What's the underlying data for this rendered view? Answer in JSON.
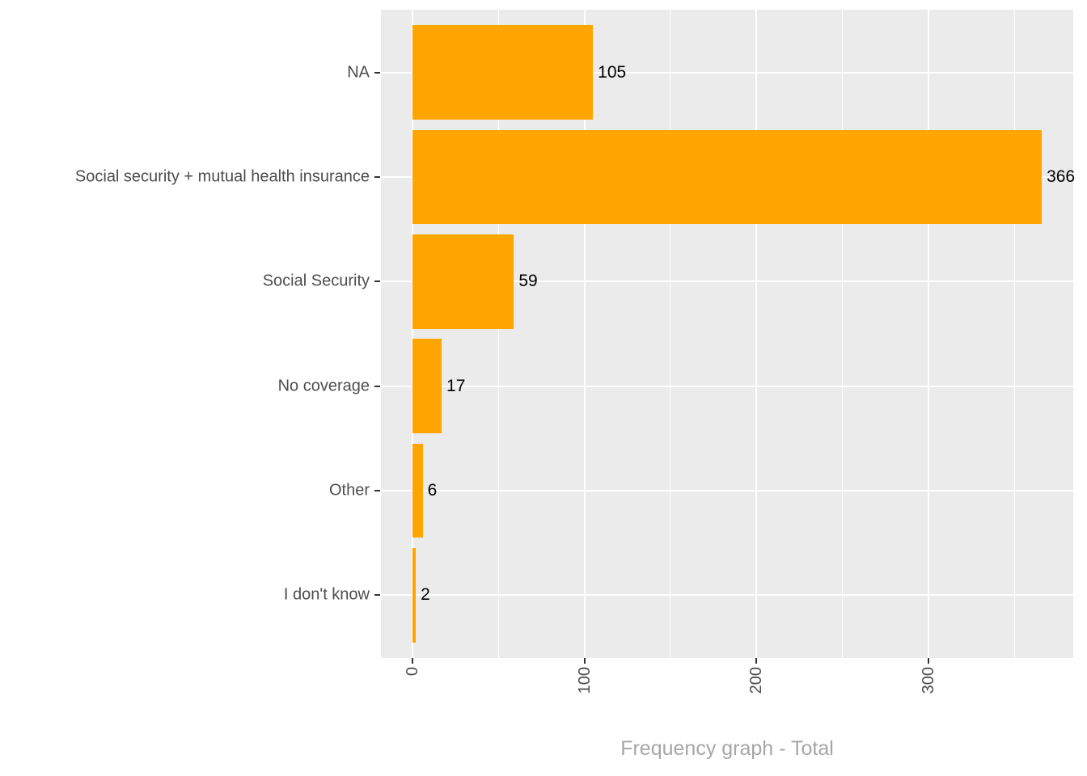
{
  "chart_data": {
    "type": "bar",
    "orientation": "horizontal",
    "title": "",
    "xlabel": "Frequency graph - Total",
    "ylabel": "",
    "categories": [
      "NA",
      "Social security + mutual health insurance",
      "Social Security",
      "No coverage",
      "Other",
      "I don't know"
    ],
    "values": [
      105,
      366,
      59,
      17,
      6,
      2
    ],
    "value_labels": [
      "105",
      "366",
      "59",
      "17",
      "6",
      "2"
    ],
    "x_ticks": [
      0,
      100,
      200,
      300
    ],
    "x_tick_labels": [
      "0",
      "100",
      "200",
      "300"
    ],
    "x_minor_ticks": [
      50,
      150,
      250,
      350
    ],
    "xlim": [
      -18.3,
      384.3
    ],
    "grid": "on",
    "legend": "none",
    "x_tick_label_rotation_deg": 90,
    "colors": {
      "bar": "#FFA500",
      "panel_background": "#EBEBEB",
      "gridline": "#FFFFFF",
      "axis_text": "#4D4D4D",
      "value_label": "#000000",
      "axis_title": "#A6A6A6",
      "tick_mark": "#333333",
      "figure_background": "#FFFFFF"
    }
  }
}
